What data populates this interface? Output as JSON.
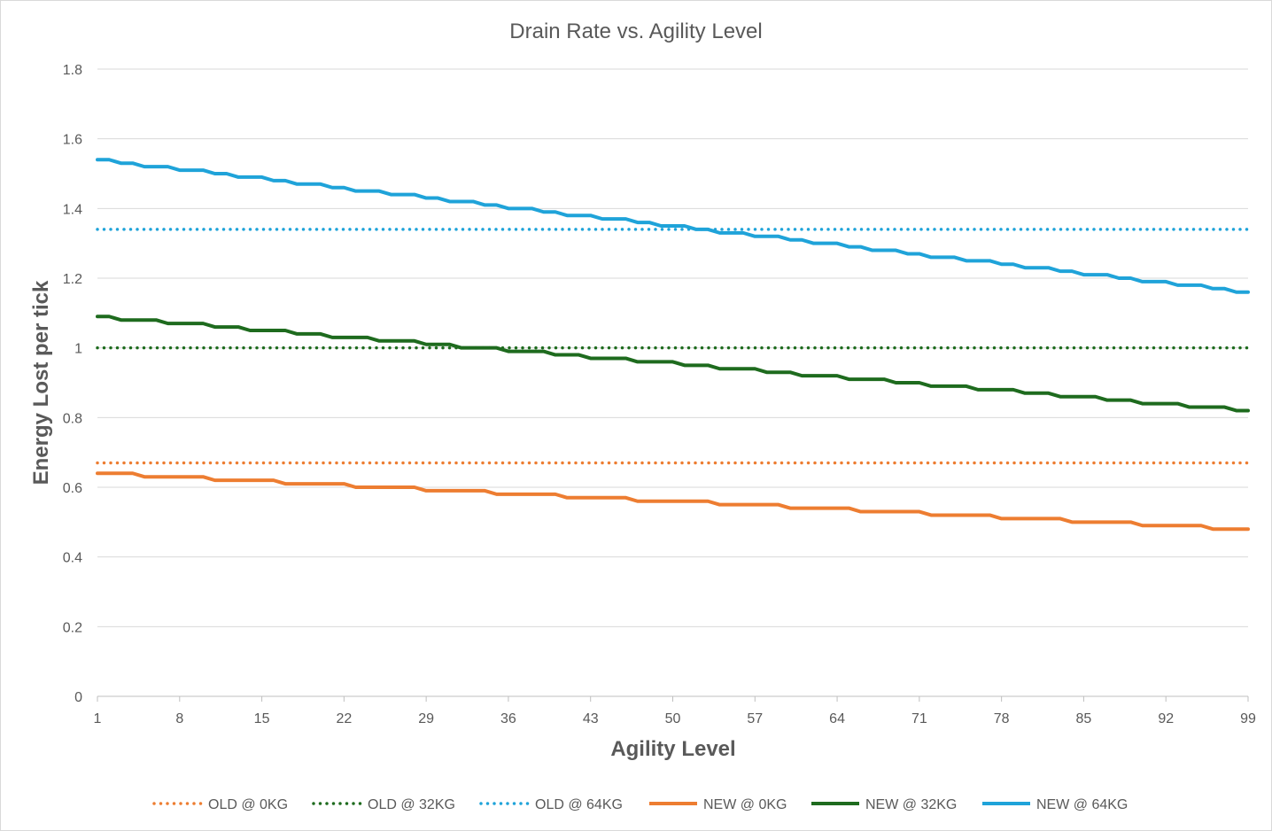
{
  "chart_data": {
    "type": "line",
    "title": "Drain Rate vs. Agility Level",
    "xlabel": "Agility Level",
    "ylabel": "Energy Lost per tick",
    "ylim": [
      0,
      1.8
    ],
    "yticks": [
      "0",
      "0.2",
      "0.4",
      "0.6",
      "0.8",
      "1",
      "1.2",
      "1.4",
      "1.6",
      "1.8"
    ],
    "xticks": [
      1,
      8,
      15,
      22,
      29,
      36,
      43,
      50,
      57,
      64,
      71,
      78,
      85,
      92,
      99
    ],
    "xrange": [
      1,
      99
    ],
    "grid": "horizontal",
    "legend_position": "bottom",
    "series": [
      {
        "name": "OLD @ 0KG",
        "style": "dotted",
        "color": "#ED7D31",
        "step_start": 0.67,
        "step_end": 0.67,
        "values": []
      },
      {
        "name": "OLD @ 32KG",
        "style": "dotted",
        "color": "#1E6B1E",
        "step_start": 1.0,
        "step_end": 1.0,
        "values": []
      },
      {
        "name": "OLD @ 64KG",
        "style": "dotted",
        "color": "#1FA3D9",
        "step_start": 1.34,
        "step_end": 1.34,
        "values": []
      },
      {
        "name": "NEW @ 0KG",
        "style": "solid",
        "color": "#ED7D31",
        "step_start": 0.64,
        "step_end": 0.48,
        "values": []
      },
      {
        "name": "NEW @ 32KG",
        "style": "solid",
        "color": "#1E6B1E",
        "step_start": 1.09,
        "step_end": 0.82,
        "values": []
      },
      {
        "name": "NEW @ 64KG",
        "style": "solid",
        "color": "#1FA3D9",
        "step_start": 1.54,
        "step_end": 1.16,
        "values": []
      }
    ]
  }
}
